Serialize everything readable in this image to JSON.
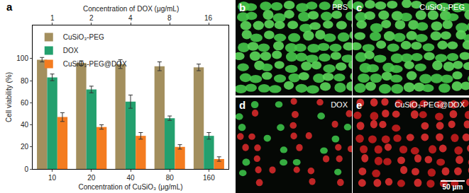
{
  "chart_data": {
    "type": "bar",
    "panel_label": "a",
    "categories": [
      10,
      20,
      40,
      80,
      160
    ],
    "xlabel": "Concentration of CuSiO₃ (μg/mL)",
    "x2_categories": [
      1,
      2,
      4,
      8,
      16
    ],
    "x2_label": "Concentration of DOX (μg/mL)",
    "ylabel": "Cell viability (%)",
    "ylim": [
      0,
      130
    ],
    "yticks": [
      0,
      20,
      40,
      60,
      80,
      100
    ],
    "legend": "upper left",
    "series": [
      {
        "name": "CuSiO₃-PEG",
        "color": "#a38f5e",
        "values": [
          99,
          96,
          95,
          93,
          92
        ],
        "errors": [
          2,
          2,
          4,
          4,
          3
        ]
      },
      {
        "name": "DOX",
        "color": "#23a06e",
        "values": [
          83,
          72,
          61,
          46,
          30
        ],
        "errors": [
          3,
          3,
          6,
          2,
          3
        ]
      },
      {
        "name": "CuSiO₃-PEG@DOX",
        "color": "#f47c20",
        "values": [
          47,
          38,
          30,
          20,
          9
        ],
        "errors": [
          4,
          2,
          3,
          2,
          2
        ]
      }
    ]
  },
  "images": [
    {
      "label": "b",
      "caption": "PBS"
    },
    {
      "label": "c",
      "caption": "CuSiO₃-PEG"
    },
    {
      "label": "d",
      "caption": "DOX"
    },
    {
      "label": "e",
      "caption": "CuSiO₃-PEG@DOX",
      "scale_bar": "50 μm"
    }
  ]
}
